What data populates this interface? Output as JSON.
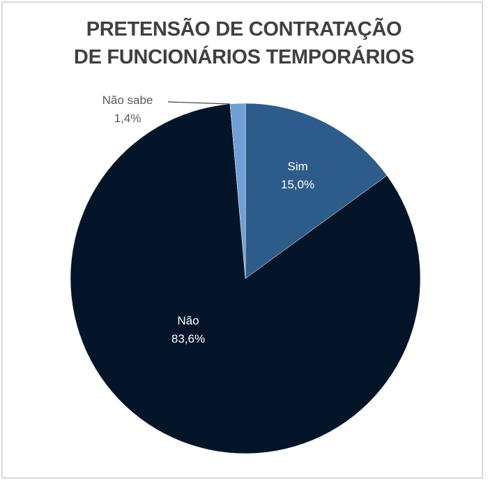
{
  "chart_data": {
    "type": "pie",
    "title": "PRETENSÃO DE CONTRATAÇÃO DE FUNCIONÁRIOS TEMPORÁRIOS",
    "title_lines": [
      "PRETENSÃO DE CONTRATAÇÃO",
      "DE FUNCIONÁRIOS TEMPORÁRIOS"
    ],
    "categories": [
      "Sim",
      "Não",
      "Não sabe"
    ],
    "values": [
      15.0,
      83.6,
      1.4
    ],
    "value_labels": [
      "15,0%",
      "83,6%",
      "1,4%"
    ],
    "colors": [
      "#2e5c8a",
      "#051529",
      "#6f9fd4"
    ],
    "start_angle_deg": 0,
    "direction": "clockwise",
    "legend": "none",
    "data_labels": "category name + percentage"
  },
  "labels": {
    "sim": {
      "name": "Sim",
      "value": "15,0%"
    },
    "nao": {
      "name": "Não",
      "value": "83,6%"
    },
    "nao_sabe": {
      "name": "Não sabe",
      "value": "1,4%"
    }
  }
}
